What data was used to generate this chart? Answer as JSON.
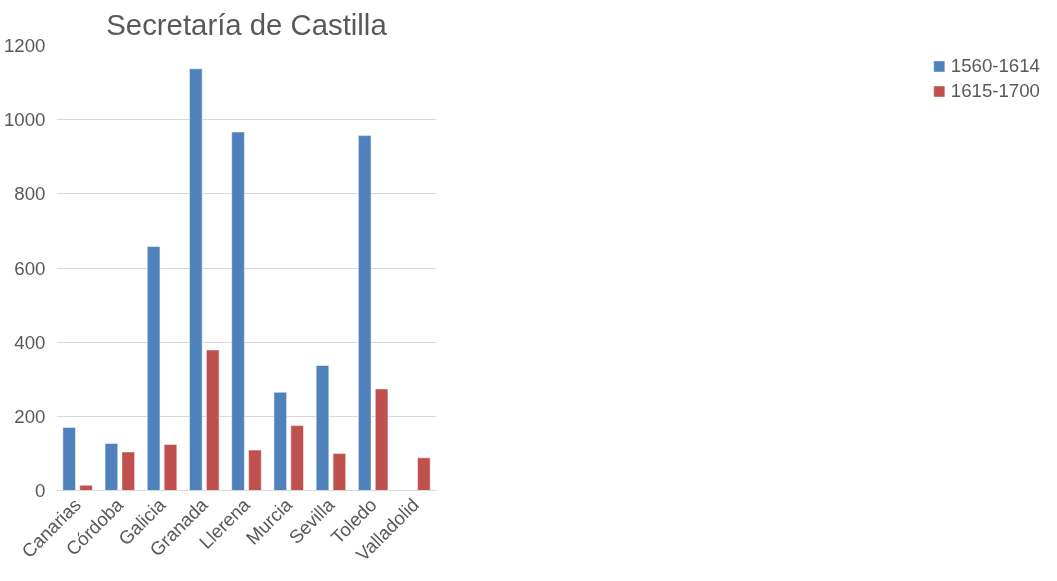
{
  "chart_data": {
    "type": "bar",
    "title": "Secretaría de Castilla",
    "categories": [
      "Canarias",
      "Córdoba",
      "Galicia",
      "Granada",
      "Llerena",
      "Murcia",
      "Sevilla",
      "Toledo",
      "Valladolid"
    ],
    "series": [
      {
        "name": "1560-1614",
        "color": "#4f81bd",
        "values": [
          170,
          127,
          658,
          1137,
          967,
          265,
          337,
          957,
          null
        ]
      },
      {
        "name": "1615-1700",
        "color": "#c0504d",
        "values": [
          14,
          104,
          124,
          379,
          109,
          175,
          100,
          274,
          88
        ]
      }
    ],
    "ylim": [
      0,
      1200
    ],
    "yticks": [
      0,
      200,
      400,
      600,
      800,
      1000,
      1200
    ],
    "grid": "y",
    "legend": "right"
  }
}
